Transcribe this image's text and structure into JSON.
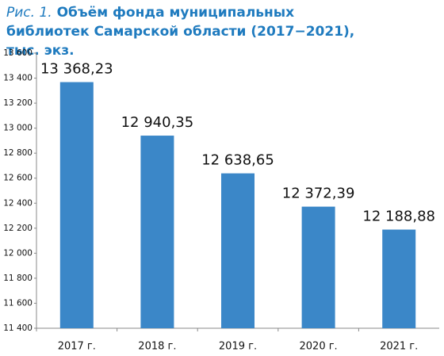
{
  "chart_data": {
    "type": "bar",
    "figure_label": "Рис. 1.",
    "title": "Объём фонда муниципальных библиотек Самарской области (2017−2021), тыс. экз.",
    "categories": [
      "2017 г.",
      "2018 г.",
      "2019 г.",
      "2020 г.",
      "2021 г."
    ],
    "values": [
      13368.23,
      12940.35,
      12638.65,
      12372.39,
      12188.88
    ],
    "value_labels": [
      "13 368,23",
      "12 940,35",
      "12 638,65",
      "12 372,39",
      "12 188,88"
    ],
    "color": "#3b87c8",
    "ylim": [
      11400,
      13600
    ],
    "yticks": [
      {
        "value": 11400,
        "label": "11 400"
      },
      {
        "value": 11600,
        "label": "11 600"
      },
      {
        "value": 11800,
        "label": "11 800"
      },
      {
        "value": 12000,
        "label": "12 000"
      },
      {
        "value": 12200,
        "label": "12 200"
      },
      {
        "value": 12400,
        "label": "12 400"
      },
      {
        "value": 12600,
        "label": "12 600"
      },
      {
        "value": 12800,
        "label": "12 800"
      },
      {
        "value": 13000,
        "label": "13 000"
      },
      {
        "value": 13200,
        "label": "13 200"
      },
      {
        "value": 13400,
        "label": "13 400"
      },
      {
        "value": 13600,
        "label": "13 600"
      }
    ],
    "grid": false
  }
}
